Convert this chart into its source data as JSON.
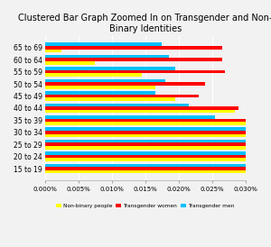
{
  "title": "Clustered Bar Graph Zoomed In on Transgender and Non-\nBinary Identities",
  "categories": [
    "65 to 69",
    "60 to 64",
    "55 to 59",
    "50 to 54",
    "45 to 49",
    "40 to 44",
    "35 to 39",
    "30 to 34",
    "25 to 29",
    "20 to 24",
    "15 to 19"
  ],
  "non_binary": [
    2.5e-05,
    7.5e-05,
    0.000145,
    0.000165,
    0.000195,
    0.000285,
    0.000575,
    0.001025,
    0.00154,
    0.001535,
    0.0009
  ],
  "trans_women": [
    0.000265,
    0.000265,
    0.00027,
    0.00024,
    0.00023,
    0.00029,
    0.000385,
    0.0005,
    0.000615,
    0.00062,
    0.00038
  ],
  "trans_men": [
    0.000175,
    0.000185,
    0.000195,
    0.00018,
    0.000165,
    0.000215,
    0.000255,
    0.00038,
    0.00064,
    0.00084,
    0.000945
  ],
  "colors": {
    "non_binary": "#FFFF00",
    "trans_women": "#FF0000",
    "trans_men": "#00BFFF"
  },
  "xlim": [
    0,
    0.0003
  ],
  "xlabel_ticks": [
    0.0,
    5e-05,
    0.0001,
    0.00015,
    0.0002,
    0.00025,
    0.0003
  ],
  "tick_labels": [
    "0.000%",
    "0.005%",
    "0.010%",
    "0.015%",
    "0.020%",
    "0.025%",
    "0.030%"
  ],
  "background_color": "#F2F2F2",
  "legend_labels": [
    "Non-binary people",
    "Transgender women",
    "Transgender men"
  ]
}
